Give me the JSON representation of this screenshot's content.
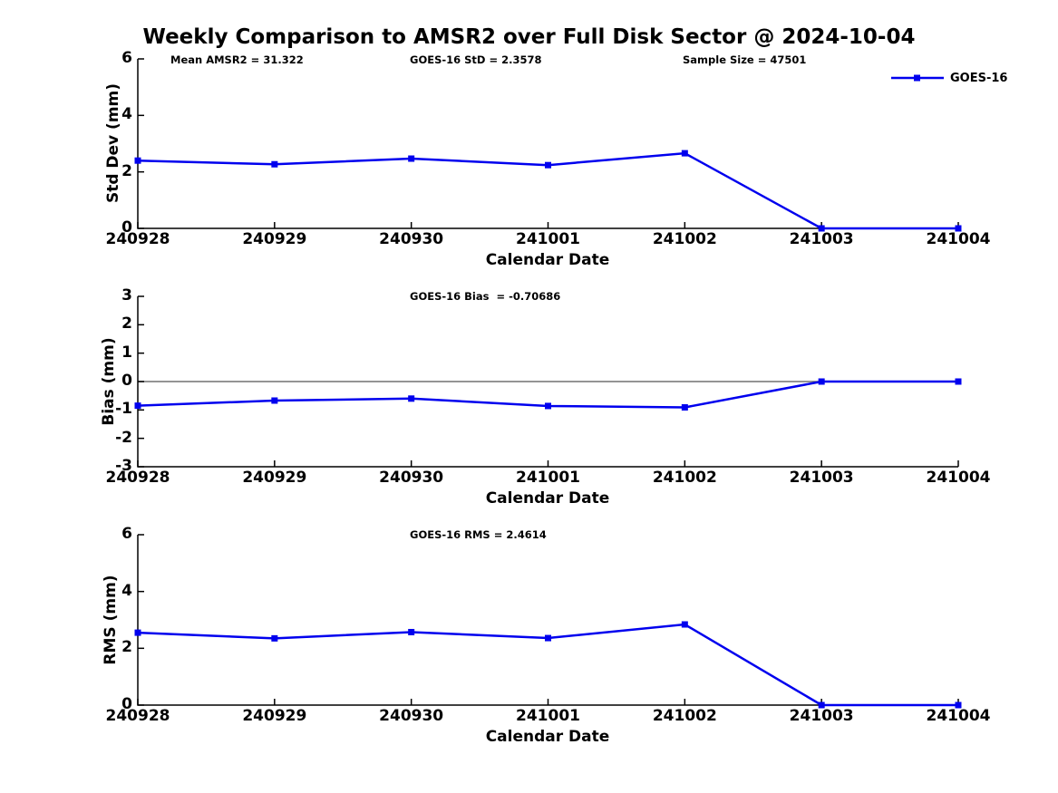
{
  "title": "Weekly Comparison to AMSR2 over Full Disk Sector @ 2024-10-04",
  "legend": {
    "label": "GOES-16"
  },
  "colors": {
    "series": "#0000ee",
    "axis": "#000000",
    "zero_line": "#707070",
    "background": "#ffffff",
    "text": "#000000"
  },
  "chart_data": [
    {
      "type": "line",
      "name": "std-dev-panel",
      "title": "",
      "ylabel": "Std Dev (mm)",
      "xlabel": "Calendar Date",
      "ylim": [
        0,
        6
      ],
      "yticks": [
        0,
        2,
        4,
        6
      ],
      "grid": false,
      "zero_line": false,
      "legend_position": "upper-right-outside",
      "categories": [
        "240928",
        "240929",
        "240930",
        "241001",
        "241002",
        "241003",
        "241004"
      ],
      "series": [
        {
          "name": "GOES-16",
          "marker": "square",
          "values": [
            2.4,
            2.27,
            2.47,
            2.24,
            2.66,
            0.0,
            0.0
          ]
        }
      ],
      "annotations": [
        {
          "text": "Mean AMSR2 = 31.322"
        },
        {
          "text": "GOES-16 StD = 2.3578"
        },
        {
          "text": "Sample Size = 47501"
        }
      ]
    },
    {
      "type": "line",
      "name": "bias-panel",
      "title": "",
      "ylabel": "Bias (mm)",
      "xlabel": "Calendar Date",
      "ylim": [
        -3,
        3
      ],
      "yticks": [
        -3,
        -2,
        -1,
        0,
        1,
        2,
        3
      ],
      "grid": false,
      "zero_line": true,
      "categories": [
        "240928",
        "240929",
        "240930",
        "241001",
        "241002",
        "241003",
        "241004"
      ],
      "series": [
        {
          "name": "GOES-16",
          "marker": "square",
          "values": [
            -0.85,
            -0.67,
            -0.6,
            -0.86,
            -0.91,
            0.0,
            0.0
          ]
        }
      ],
      "annotations": [
        {
          "text": "GOES-16 Bias  = -0.70686"
        }
      ]
    },
    {
      "type": "line",
      "name": "rms-panel",
      "title": "",
      "ylabel": "RMS (mm)",
      "xlabel": "Calendar Date",
      "ylim": [
        0,
        6
      ],
      "yticks": [
        0,
        2,
        4,
        6
      ],
      "grid": false,
      "zero_line": false,
      "categories": [
        "240928",
        "240929",
        "240930",
        "241001",
        "241002",
        "241003",
        "241004"
      ],
      "series": [
        {
          "name": "GOES-16",
          "marker": "square",
          "values": [
            2.55,
            2.35,
            2.57,
            2.36,
            2.84,
            0.0,
            0.0
          ]
        }
      ],
      "annotations": [
        {
          "text": "GOES-16 RMS = 2.4614"
        }
      ]
    }
  ]
}
